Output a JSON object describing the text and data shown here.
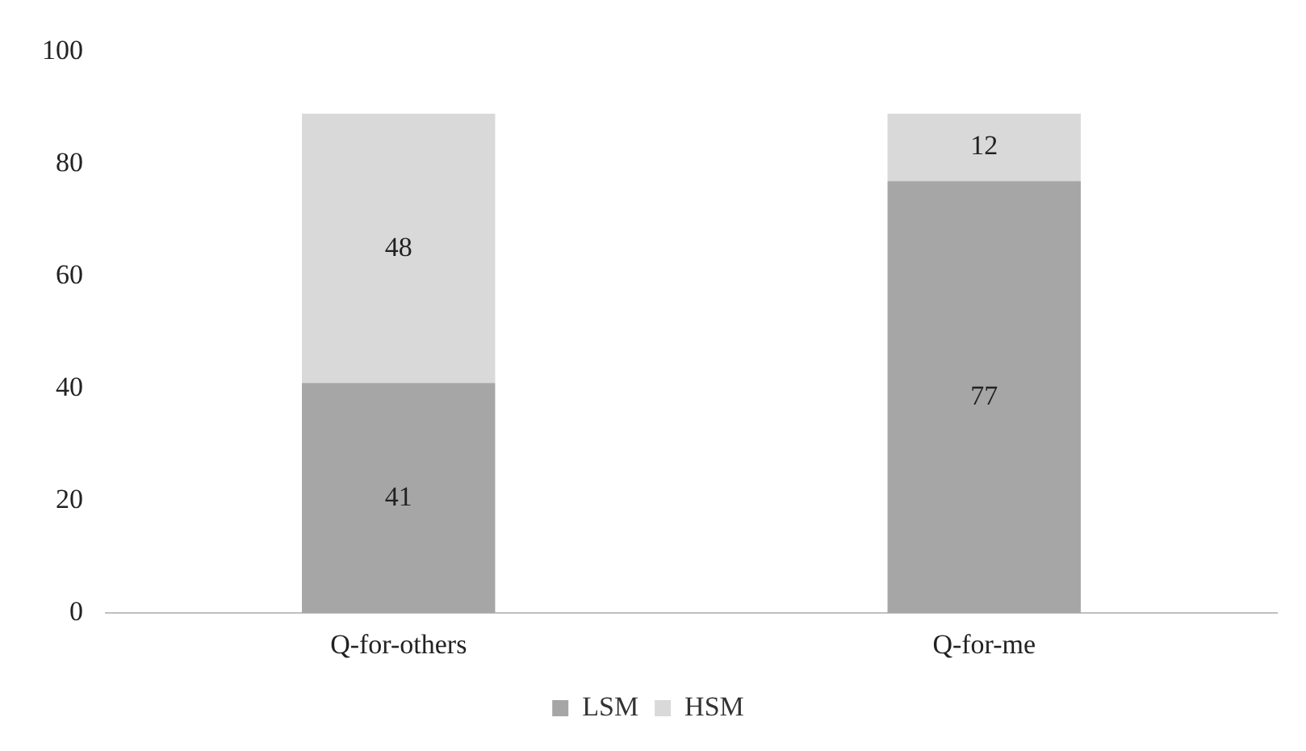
{
  "chart_data": {
    "type": "bar",
    "stacked": true,
    "categories": [
      "Q-for-others",
      "Q-for-me"
    ],
    "series": [
      {
        "name": "LSM",
        "color": "#a6a6a6",
        "values": [
          41,
          77
        ]
      },
      {
        "name": "HSM",
        "color": "#d9d9d9",
        "values": [
          48,
          12
        ]
      }
    ],
    "ylim": [
      0,
      100
    ],
    "yticks": [
      0,
      20,
      40,
      60,
      80,
      100
    ],
    "grid": false,
    "legend": "bottom",
    "data_labels": true
  }
}
